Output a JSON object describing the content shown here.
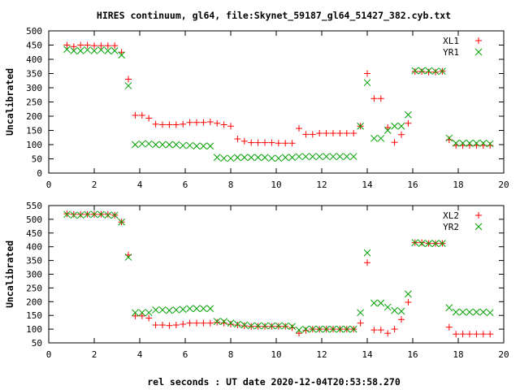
{
  "title": "HIRES continuum, gl64, file:Skynet_59187_gl64_51427_382.cyb.txt",
  "xlabel": "rel seconds : UT date 2020-12-04T20:53:58.270",
  "colors": {
    "red": "#ff0000",
    "green": "#00a000"
  },
  "chart_data": [
    {
      "type": "scatter",
      "ylabel": "Uncalibrated",
      "xlim": [
        0,
        20
      ],
      "ylim": [
        0,
        500
      ],
      "xticks": [
        0,
        2,
        4,
        6,
        8,
        10,
        12,
        14,
        16,
        18,
        20
      ],
      "yticks": [
        0,
        50,
        100,
        150,
        200,
        250,
        300,
        350,
        400,
        450,
        500
      ],
      "legend_position": "top-right",
      "series": [
        {
          "name": "XL1",
          "marker": "plus",
          "color": "#ff0000",
          "x": [
            0.8,
            1.1,
            1.4,
            1.7,
            2.0,
            2.3,
            2.6,
            2.9,
            3.2,
            3.5,
            3.8,
            4.1,
            4.4,
            4.7,
            5.0,
            5.3,
            5.6,
            5.9,
            6.2,
            6.5,
            6.8,
            7.1,
            7.4,
            7.7,
            8.0,
            8.3,
            8.6,
            8.9,
            9.2,
            9.5,
            9.8,
            10.1,
            10.4,
            10.7,
            11.0,
            11.3,
            11.6,
            11.9,
            12.2,
            12.5,
            12.8,
            13.1,
            13.4,
            13.7,
            14.0,
            14.3,
            14.6,
            14.9,
            15.2,
            15.5,
            15.8,
            16.1,
            16.4,
            16.7,
            17.0,
            17.3,
            17.6,
            17.9,
            18.2,
            18.5,
            18.8,
            19.1,
            19.4
          ],
          "y": [
            450,
            445,
            450,
            450,
            448,
            448,
            448,
            448,
            425,
            330,
            203,
            203,
            193,
            172,
            170,
            170,
            170,
            172,
            178,
            178,
            178,
            180,
            175,
            170,
            165,
            120,
            112,
            107,
            107,
            107,
            107,
            105,
            105,
            105,
            157,
            136,
            136,
            140,
            140,
            140,
            140,
            140,
            140,
            165,
            350,
            262,
            262,
            160,
            108,
            135,
            175,
            357,
            357,
            355,
            355,
            358,
            117,
            97,
            97,
            97,
            97,
            97,
            97
          ]
        },
        {
          "name": "YR1",
          "marker": "cross",
          "color": "#00a000",
          "x": [
            0.8,
            1.1,
            1.4,
            1.7,
            2.0,
            2.3,
            2.6,
            2.9,
            3.2,
            3.5,
            3.8,
            4.1,
            4.4,
            4.7,
            5.0,
            5.3,
            5.6,
            5.9,
            6.2,
            6.5,
            6.8,
            7.1,
            7.4,
            7.7,
            8.0,
            8.3,
            8.6,
            8.9,
            9.2,
            9.5,
            9.8,
            10.1,
            10.4,
            10.7,
            11.0,
            11.3,
            11.6,
            11.9,
            12.2,
            12.5,
            12.8,
            13.1,
            13.4,
            13.7,
            14.0,
            14.3,
            14.6,
            14.9,
            15.2,
            15.5,
            15.8,
            16.1,
            16.4,
            16.7,
            17.0,
            17.3,
            17.6,
            17.9,
            18.2,
            18.5,
            18.8,
            19.1,
            19.4
          ],
          "y": [
            435,
            430,
            430,
            433,
            430,
            433,
            430,
            430,
            415,
            307,
            100,
            103,
            103,
            100,
            100,
            100,
            100,
            97,
            97,
            95,
            95,
            95,
            55,
            52,
            52,
            55,
            55,
            55,
            55,
            55,
            52,
            52,
            55,
            55,
            58,
            58,
            58,
            58,
            58,
            58,
            58,
            58,
            58,
            165,
            318,
            122,
            122,
            150,
            165,
            165,
            205,
            360,
            360,
            360,
            358,
            358,
            123,
            105,
            105,
            105,
            105,
            105,
            103
          ]
        }
      ]
    },
    {
      "type": "scatter",
      "ylabel": "Uncalibrated",
      "xlim": [
        0,
        20
      ],
      "ylim": [
        50,
        550
      ],
      "xticks": [
        0,
        2,
        4,
        6,
        8,
        10,
        12,
        14,
        16,
        18,
        20
      ],
      "yticks": [
        50,
        100,
        150,
        200,
        250,
        300,
        350,
        400,
        450,
        500,
        550
      ],
      "legend_position": "top-right",
      "series": [
        {
          "name": "XL2",
          "marker": "plus",
          "color": "#ff0000",
          "x": [
            0.8,
            1.1,
            1.4,
            1.7,
            2.0,
            2.3,
            2.6,
            2.9,
            3.2,
            3.5,
            3.8,
            4.1,
            4.4,
            4.7,
            5.0,
            5.3,
            5.6,
            5.9,
            6.2,
            6.5,
            6.8,
            7.1,
            7.4,
            7.7,
            8.0,
            8.3,
            8.6,
            8.9,
            9.2,
            9.5,
            9.8,
            10.1,
            10.4,
            10.7,
            11.0,
            11.3,
            11.6,
            11.9,
            12.2,
            12.5,
            12.8,
            13.1,
            13.4,
            13.7,
            14.0,
            14.3,
            14.6,
            14.9,
            15.2,
            15.5,
            15.8,
            16.1,
            16.4,
            16.7,
            17.0,
            17.3,
            17.6,
            17.9,
            18.2,
            18.5,
            18.8,
            19.1,
            19.4
          ],
          "y": [
            520,
            518,
            518,
            518,
            518,
            518,
            518,
            515,
            490,
            370,
            148,
            148,
            140,
            115,
            115,
            113,
            115,
            118,
            122,
            122,
            122,
            122,
            125,
            122,
            118,
            115,
            112,
            110,
            110,
            110,
            110,
            110,
            110,
            105,
            85,
            95,
            100,
            100,
            100,
            100,
            100,
            100,
            100,
            122,
            342,
            97,
            97,
            85,
            100,
            135,
            198,
            415,
            415,
            412,
            412,
            412,
            107,
            82,
            82,
            82,
            82,
            82,
            82
          ]
        },
        {
          "name": "YR2",
          "marker": "cross",
          "color": "#00a000",
          "x": [
            0.8,
            1.1,
            1.4,
            1.7,
            2.0,
            2.3,
            2.6,
            2.9,
            3.2,
            3.5,
            3.8,
            4.1,
            4.4,
            4.7,
            5.0,
            5.3,
            5.6,
            5.9,
            6.2,
            6.5,
            6.8,
            7.1,
            7.4,
            7.7,
            8.0,
            8.3,
            8.6,
            8.9,
            9.2,
            9.5,
            9.8,
            10.1,
            10.4,
            10.7,
            11.0,
            11.3,
            11.6,
            11.9,
            12.2,
            12.5,
            12.8,
            13.1,
            13.4,
            13.7,
            14.0,
            14.3,
            14.6,
            14.9,
            15.2,
            15.5,
            15.8,
            16.1,
            16.4,
            16.7,
            17.0,
            17.3,
            17.6,
            17.9,
            18.2,
            18.5,
            18.8,
            19.1,
            19.4
          ],
          "y": [
            518,
            515,
            515,
            518,
            518,
            518,
            515,
            515,
            490,
            362,
            160,
            160,
            160,
            170,
            170,
            168,
            170,
            172,
            175,
            175,
            175,
            175,
            128,
            128,
            122,
            118,
            115,
            112,
            112,
            112,
            112,
            112,
            112,
            110,
            97,
            100,
            100,
            100,
            100,
            100,
            100,
            100,
            100,
            160,
            378,
            195,
            195,
            180,
            168,
            165,
            228,
            415,
            412,
            412,
            412,
            412,
            178,
            162,
            162,
            162,
            162,
            162,
            160
          ]
        }
      ]
    }
  ]
}
